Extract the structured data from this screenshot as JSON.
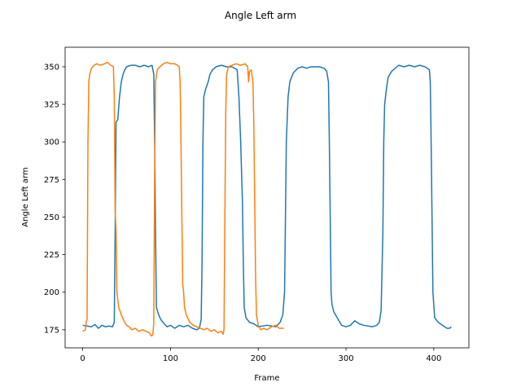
{
  "chart_data": {
    "type": "line",
    "title": "Angle Left arm",
    "xlabel": "Frame",
    "ylabel": "Angle Left arm",
    "xlim": [
      -20,
      440
    ],
    "ylim": [
      163,
      363
    ],
    "xticks": [
      0,
      100,
      200,
      300,
      400
    ],
    "yticks": [
      175,
      200,
      225,
      250,
      275,
      300,
      325,
      350
    ],
    "grid": false,
    "series": [
      {
        "color": "#1f77b4",
        "points": [
          [
            0,
            178
          ],
          [
            5,
            177.5
          ],
          [
            10,
            177
          ],
          [
            14,
            178.5
          ],
          [
            18,
            176
          ],
          [
            22,
            178
          ],
          [
            26,
            177
          ],
          [
            30,
            177.5
          ],
          [
            34,
            177
          ],
          [
            36,
            180
          ],
          [
            37,
            240
          ],
          [
            38,
            313
          ],
          [
            40,
            315
          ],
          [
            42,
            330
          ],
          [
            44,
            340
          ],
          [
            46,
            345
          ],
          [
            48,
            348
          ],
          [
            50,
            350
          ],
          [
            55,
            351
          ],
          [
            60,
            351
          ],
          [
            65,
            350
          ],
          [
            70,
            351
          ],
          [
            75,
            350
          ],
          [
            79,
            351
          ],
          [
            81,
            345
          ],
          [
            82,
            300
          ],
          [
            83,
            240
          ],
          [
            84,
            190
          ],
          [
            86,
            186
          ],
          [
            88,
            183
          ],
          [
            90,
            181
          ],
          [
            93,
            179
          ],
          [
            96,
            177
          ],
          [
            100,
            178
          ],
          [
            105,
            176
          ],
          [
            110,
            178
          ],
          [
            115,
            177
          ],
          [
            120,
            178
          ],
          [
            125,
            176
          ],
          [
            130,
            175
          ],
          [
            133,
            176
          ],
          [
            135,
            182
          ],
          [
            136,
            220
          ],
          [
            137,
            300
          ],
          [
            138,
            330
          ],
          [
            140,
            335
          ],
          [
            143,
            340
          ],
          [
            145,
            345
          ],
          [
            148,
            348
          ],
          [
            152,
            350
          ],
          [
            158,
            351
          ],
          [
            164,
            350
          ],
          [
            170,
            350
          ],
          [
            176,
            348
          ],
          [
            178,
            330
          ],
          [
            180,
            300
          ],
          [
            182,
            260
          ],
          [
            183,
            220
          ],
          [
            184,
            190
          ],
          [
            186,
            183
          ],
          [
            190,
            180
          ],
          [
            195,
            179
          ],
          [
            200,
            177
          ],
          [
            210,
            178
          ],
          [
            220,
            177
          ],
          [
            225,
            180
          ],
          [
            228,
            185
          ],
          [
            230,
            200
          ],
          [
            232,
            300
          ],
          [
            234,
            330
          ],
          [
            236,
            340
          ],
          [
            240,
            346
          ],
          [
            245,
            349
          ],
          [
            250,
            350
          ],
          [
            255,
            349
          ],
          [
            260,
            350
          ],
          [
            265,
            350
          ],
          [
            270,
            350
          ],
          [
            275,
            349
          ],
          [
            278,
            347
          ],
          [
            280,
            340
          ],
          [
            281,
            300
          ],
          [
            282,
            250
          ],
          [
            283,
            200
          ],
          [
            284,
            192
          ],
          [
            286,
            187
          ],
          [
            288,
            185
          ],
          [
            292,
            181
          ],
          [
            295,
            178
          ],
          [
            300,
            177
          ],
          [
            305,
            178
          ],
          [
            310,
            181
          ],
          [
            315,
            179
          ],
          [
            320,
            178
          ],
          [
            330,
            177
          ],
          [
            335,
            178
          ],
          [
            338,
            180
          ],
          [
            340,
            188
          ],
          [
            342,
            240
          ],
          [
            343,
            300
          ],
          [
            344,
            325
          ],
          [
            346,
            335
          ],
          [
            348,
            343
          ],
          [
            352,
            347
          ],
          [
            356,
            349
          ],
          [
            360,
            351
          ],
          [
            366,
            350
          ],
          [
            372,
            351
          ],
          [
            378,
            350
          ],
          [
            384,
            351
          ],
          [
            390,
            350
          ],
          [
            395,
            348
          ],
          [
            396,
            340
          ],
          [
            397,
            300
          ],
          [
            398,
            250
          ],
          [
            399,
            200
          ],
          [
            401,
            183
          ],
          [
            405,
            180
          ],
          [
            410,
            178
          ],
          [
            415,
            176
          ],
          [
            418,
            176
          ],
          [
            420,
            177
          ]
        ]
      },
      {
        "color": "#ff7f0e",
        "points": [
          [
            0,
            174
          ],
          [
            3,
            175
          ],
          [
            4,
            180
          ],
          [
            5,
            182
          ],
          [
            6,
            300
          ],
          [
            7,
            340
          ],
          [
            8,
            345
          ],
          [
            10,
            349
          ],
          [
            13,
            351
          ],
          [
            16,
            352
          ],
          [
            20,
            351
          ],
          [
            25,
            352
          ],
          [
            28,
            353
          ],
          [
            32,
            351
          ],
          [
            35,
            350
          ],
          [
            36,
            330
          ],
          [
            37,
            255
          ],
          [
            38,
            240
          ],
          [
            39,
            200
          ],
          [
            41,
            190
          ],
          [
            44,
            185
          ],
          [
            47,
            181
          ],
          [
            50,
            178
          ],
          [
            53,
            177
          ],
          [
            56,
            175
          ],
          [
            60,
            176
          ],
          [
            64,
            174
          ],
          [
            68,
            175
          ],
          [
            72,
            174
          ],
          [
            76,
            173
          ],
          [
            78,
            171
          ],
          [
            79,
            171
          ],
          [
            80,
            172
          ],
          [
            81,
            180
          ],
          [
            82,
            280
          ],
          [
            83,
            340
          ],
          [
            85,
            348
          ],
          [
            88,
            350
          ],
          [
            92,
            352
          ],
          [
            96,
            353
          ],
          [
            100,
            352
          ],
          [
            105,
            352
          ],
          [
            108,
            351
          ],
          [
            110,
            350
          ],
          [
            111,
            340
          ],
          [
            112,
            300
          ],
          [
            113,
            250
          ],
          [
            114,
            205
          ],
          [
            115,
            200
          ],
          [
            116,
            190
          ],
          [
            118,
            185
          ],
          [
            122,
            180
          ],
          [
            126,
            178
          ],
          [
            130,
            177
          ],
          [
            134,
            176
          ],
          [
            138,
            175
          ],
          [
            142,
            176
          ],
          [
            146,
            174
          ],
          [
            150,
            175
          ],
          [
            154,
            173
          ],
          [
            158,
            174
          ],
          [
            160,
            172
          ],
          [
            161,
            175
          ],
          [
            162,
            250
          ],
          [
            163,
            320
          ],
          [
            164,
            345
          ],
          [
            166,
            350
          ],
          [
            170,
            351
          ],
          [
            175,
            352
          ],
          [
            180,
            351
          ],
          [
            185,
            352
          ],
          [
            188,
            350
          ],
          [
            189,
            340
          ],
          [
            190,
            347
          ],
          [
            192,
            348
          ],
          [
            194,
            340
          ],
          [
            195,
            310
          ],
          [
            196,
            260
          ],
          [
            197,
            210
          ],
          [
            198,
            185
          ],
          [
            200,
            178
          ],
          [
            203,
            175
          ],
          [
            206,
            176
          ],
          [
            210,
            175
          ],
          [
            215,
            177
          ],
          [
            220,
            178
          ],
          [
            224,
            176
          ],
          [
            227,
            176
          ],
          [
            229,
            176
          ]
        ]
      }
    ]
  }
}
